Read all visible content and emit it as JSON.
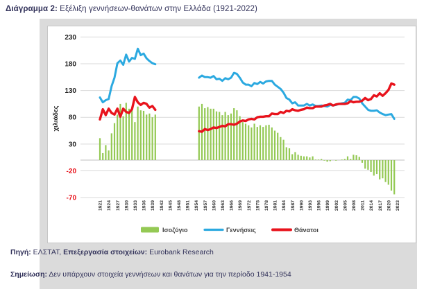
{
  "title": {
    "label": "Διάγραμμα 2:",
    "text": "Εξέλιξη γεννήσεων-θανάτων στην Ελλάδα (1921-2022)"
  },
  "source": {
    "label1": "Πηγή:",
    "text1": "ΕΛΣΤΑΤ,",
    "label2": "Επεξεργασία στοιχείων:",
    "text2": "Eurobank Research"
  },
  "note": {
    "label": "Σημείωση:",
    "text": "Δεν υπάρχουν στοιχεία γεννήσεων και θανάτων για την περίοδο 1941-1954"
  },
  "colors": {
    "card_gray": "#dbdbdb",
    "grid": "#d9d9d9",
    "axis_line": "#bfbfbf",
    "tick_text": "#262626",
    "negative_tick_text": "#e8131c",
    "title_navy": "#32325a",
    "legend_text": "#404040",
    "balance_green": "#94c954",
    "births_blue": "#2ba9e0",
    "deaths_red": "#e8131c"
  },
  "chart_data": {
    "type": "bar+line",
    "title": "Εξέλιξη γεννήσεων-θανάτων στην Ελλάδα (1921-2022)",
    "ylabel": "χιλιάδες",
    "units": "thousands",
    "ylim": [
      -95,
      258
    ],
    "y_ticks": [
      230,
      180,
      130,
      80,
      30,
      -20,
      -70
    ],
    "x_tick_years": [
      1921,
      1924,
      1927,
      1930,
      1933,
      1936,
      1939,
      1942,
      1945,
      1948,
      1951,
      1954,
      1957,
      1960,
      1963,
      1966,
      1969,
      1972,
      1975,
      1978,
      1981,
      1984,
      1987,
      1990,
      1993,
      1996,
      1999,
      2002,
      2005,
      2008,
      2011,
      2014,
      2017,
      2020,
      2023
    ],
    "grid": true,
    "legend_position": "bottom",
    "data_gap_note": "no data 1941-1954",
    "years": [
      1921,
      1922,
      1923,
      1924,
      1925,
      1926,
      1927,
      1928,
      1929,
      1930,
      1931,
      1932,
      1933,
      1934,
      1935,
      1936,
      1937,
      1938,
      1939,
      1940,
      1941,
      1942,
      1943,
      1944,
      1945,
      1946,
      1947,
      1948,
      1949,
      1950,
      1951,
      1952,
      1953,
      1954,
      1955,
      1956,
      1957,
      1958,
      1959,
      1960,
      1961,
      1962,
      1963,
      1964,
      1965,
      1966,
      1967,
      1968,
      1969,
      1970,
      1971,
      1972,
      1973,
      1974,
      1975,
      1976,
      1977,
      1978,
      1979,
      1980,
      1981,
      1982,
      1983,
      1984,
      1985,
      1986,
      1987,
      1988,
      1989,
      1990,
      1991,
      1992,
      1993,
      1994,
      1995,
      1996,
      1997,
      1998,
      1999,
      2000,
      2001,
      2002,
      2003,
      2004,
      2005,
      2006,
      2007,
      2008,
      2009,
      2010,
      2011,
      2012,
      2013,
      2014,
      2015,
      2016,
      2017,
      2018,
      2019,
      2020,
      2021,
      2022
    ],
    "series": [
      {
        "name": "Ισοζύγιο",
        "type": "bar",
        "color": "#94c954",
        "values": [
          41,
          13,
          28,
          18,
          50,
          69,
          85,
          105,
          82,
          107,
          96,
          96,
          71,
          100,
          93,
          92,
          85,
          87,
          80,
          85,
          null,
          null,
          null,
          null,
          null,
          null,
          null,
          null,
          null,
          null,
          null,
          null,
          null,
          null,
          100,
          105,
          97,
          99,
          96,
          96,
          91,
          90,
          84,
          90,
          84,
          87,
          97,
          93,
          82,
          71,
          68,
          65,
          61,
          68,
          62,
          65,
          62,
          65,
          66,
          61,
          55,
          51,
          43,
          38,
          24,
          22,
          11,
          15,
          10,
          8,
          7,
          7,
          5,
          7,
          1,
          1,
          2,
          -1,
          -3,
          -2,
          0,
          -1,
          0,
          1,
          2,
          7,
          2,
          10,
          9,
          6,
          -5,
          -16,
          -18,
          -22,
          -29,
          -26,
          -36,
          -34,
          -41,
          -46,
          -57,
          -64
        ]
      },
      {
        "name": "Γεννήσεις",
        "type": "line",
        "color": "#2ba9e0",
        "values": [
          117,
          108,
          112,
          114,
          138,
          154,
          181,
          186,
          178,
          197,
          184,
          191,
          189,
          208,
          196,
          199,
          190,
          185,
          181,
          179,
          null,
          null,
          null,
          null,
          null,
          null,
          null,
          null,
          null,
          null,
          null,
          null,
          null,
          null,
          154,
          158,
          155,
          155,
          154,
          157,
          151,
          152,
          148,
          153,
          151,
          154,
          163,
          161,
          154,
          145,
          141,
          141,
          138,
          144,
          142,
          146,
          143,
          147,
          148,
          148,
          141,
          137,
          133,
          126,
          116,
          113,
          106,
          108,
          102,
          102,
          102,
          105,
          102,
          104,
          101,
          101,
          102,
          101,
          100,
          103,
          102,
          103,
          105,
          106,
          107,
          113,
          112,
          118,
          118,
          115,
          106,
          100,
          94,
          92,
          92,
          93,
          89,
          86,
          84,
          85,
          86,
          77
        ]
      },
      {
        "name": "Θάνατοι",
        "type": "line",
        "color": "#e8131c",
        "values": [
          76,
          95,
          84,
          96,
          88,
          85,
          96,
          81,
          96,
          90,
          88,
          95,
          118,
          108,
          103,
          107,
          105,
          98,
          101,
          94,
          null,
          null,
          null,
          null,
          null,
          null,
          null,
          null,
          null,
          null,
          null,
          null,
          null,
          null,
          54,
          53,
          58,
          56,
          58,
          61,
          60,
          62,
          64,
          63,
          67,
          67,
          66,
          68,
          72,
          74,
          73,
          76,
          77,
          76,
          80,
          81,
          81,
          82,
          82,
          87,
          86,
          86,
          90,
          88,
          92,
          91,
          95,
          93,
          92,
          94,
          95,
          98,
          97,
          97,
          100,
          100,
          100,
          102,
          103,
          105,
          102,
          104,
          105,
          105,
          105,
          106,
          110,
          108,
          109,
          109,
          111,
          116,
          112,
          114,
          121,
          119,
          125,
          120,
          125,
          131,
          143,
          141
        ]
      }
    ]
  }
}
